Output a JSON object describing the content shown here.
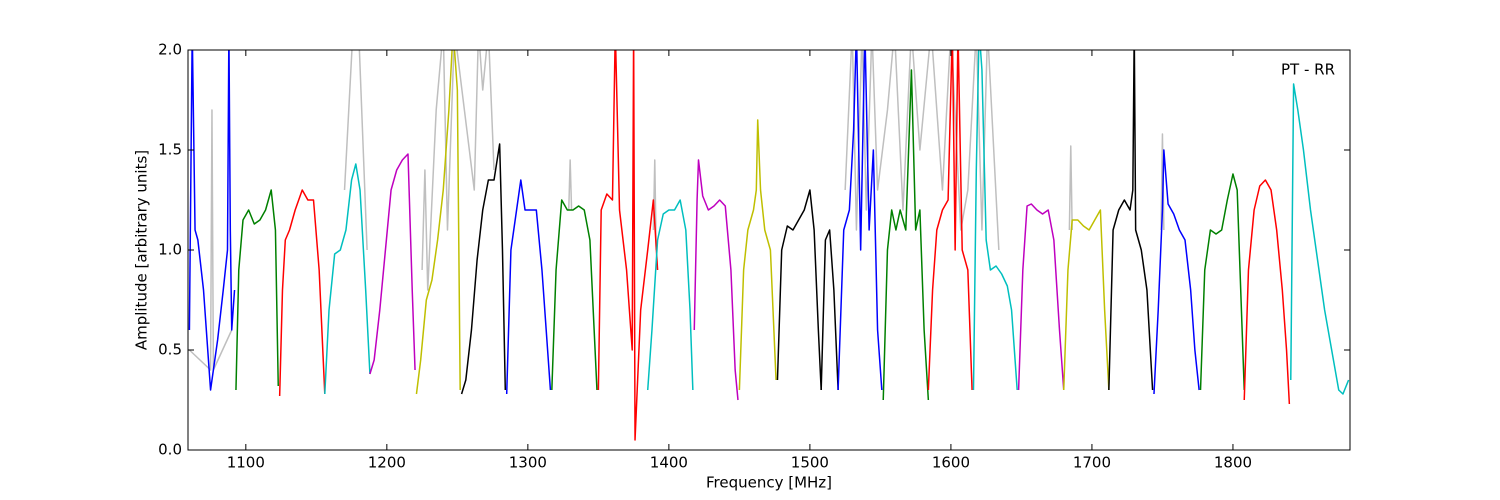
{
  "chart_data": {
    "type": "line",
    "xlabel": "Frequency [MHz]",
    "ylabel": "Amplitude [arbitrary units]",
    "annotation": "PT - RR",
    "xlim": [
      1059,
      1883
    ],
    "ylim": [
      0,
      2
    ],
    "xticks": [
      1100,
      1200,
      1300,
      1400,
      1500,
      1600,
      1700,
      1800
    ],
    "yticks": [
      {
        "value": 0,
        "label": "0.0"
      },
      0.5,
      {
        "value": 1,
        "label": "1.0"
      },
      1.5,
      {
        "value": 2,
        "label": "2.0"
      }
    ],
    "series": [
      {
        "color": "#bfbfbf",
        "x": [
          1060,
          1075,
          1076,
          1077,
          1090
        ],
        "values": [
          0.5,
          0.4,
          1.7,
          0.4,
          0.6
        ]
      },
      {
        "color": "#bfbfbf",
        "x": [
          1170,
          1176,
          1180,
          1186
        ],
        "values": [
          1.3,
          2.1,
          2.1,
          1.0
        ]
      },
      {
        "color": "#bfbfbf",
        "x": [
          1225,
          1227,
          1229,
          1235,
          1240,
          1243,
          1248,
          1262,
          1265,
          1268,
          1272,
          1276
        ],
        "values": [
          0.9,
          1.4,
          0.8,
          1.7,
          2.1,
          1.1,
          2.1,
          1.3,
          2.1,
          1.8,
          2.1,
          1.4
        ]
      },
      {
        "color": "#bfbfbf",
        "x": [
          1329,
          1330,
          1331
        ],
        "values": [
          1.2,
          1.45,
          1.2
        ]
      },
      {
        "color": "#bfbfbf",
        "x": [
          1389,
          1390,
          1391
        ],
        "values": [
          1.1,
          1.45,
          1.0
        ]
      },
      {
        "color": "#bfbfbf",
        "x": [
          1525,
          1530,
          1533,
          1537,
          1540,
          1544,
          1548,
          1555,
          1560,
          1566,
          1572,
          1578,
          1586,
          1594,
          1600,
          1607,
          1612,
          1618,
          1622,
          1626,
          1634
        ],
        "values": [
          1.3,
          2.1,
          1.1,
          2.1,
          1.2,
          2.1,
          1.3,
          1.7,
          2.1,
          1.2,
          2.1,
          1.5,
          2.1,
          1.3,
          2.1,
          1.1,
          1.3,
          2.1,
          1.1,
          2.1,
          1.0
        ]
      },
      {
        "color": "#bfbfbf",
        "x": [
          1684,
          1685,
          1686
        ],
        "values": [
          1.1,
          1.52,
          1.1
        ]
      },
      {
        "color": "#bfbfbf",
        "x": [
          1749,
          1750,
          1751
        ],
        "values": [
          1.1,
          1.58,
          1.1
        ]
      },
      {
        "color": "#0000ff",
        "x": [
          1060,
          1062,
          1064,
          1066,
          1070,
          1075,
          1080,
          1084,
          1087,
          1088,
          1089,
          1090,
          1092
        ],
        "values": [
          0.6,
          2.1,
          1.1,
          1.05,
          0.8,
          0.3,
          0.55,
          0.8,
          1.0,
          2.1,
          1.1,
          0.6,
          0.8
        ]
      },
      {
        "color": "#008000",
        "x": [
          1093,
          1095,
          1098,
          1102,
          1106,
          1110,
          1114,
          1118,
          1121,
          1123
        ],
        "values": [
          0.3,
          0.9,
          1.15,
          1.2,
          1.13,
          1.15,
          1.2,
          1.3,
          1.1,
          0.32
        ]
      },
      {
        "color": "#ff0000",
        "x": [
          1124,
          1126,
          1128,
          1131,
          1135,
          1140,
          1144,
          1148,
          1152,
          1156
        ],
        "values": [
          0.27,
          0.8,
          1.05,
          1.1,
          1.2,
          1.3,
          1.25,
          1.25,
          0.9,
          0.28
        ]
      },
      {
        "color": "#00bfbf",
        "x": [
          1156,
          1159,
          1163,
          1167,
          1171,
          1175,
          1178,
          1181,
          1185,
          1188
        ],
        "values": [
          0.28,
          0.7,
          0.98,
          1.0,
          1.1,
          1.35,
          1.43,
          1.3,
          0.8,
          0.38
        ]
      },
      {
        "color": "#bf00bf",
        "x": [
          1188,
          1191,
          1195,
          1199,
          1203,
          1207,
          1211,
          1215,
          1218,
          1220
        ],
        "values": [
          0.38,
          0.45,
          0.7,
          1.0,
          1.3,
          1.4,
          1.45,
          1.48,
          0.8,
          0.4
        ]
      },
      {
        "color": "#bfbf00",
        "x": [
          1221,
          1224,
          1228,
          1232,
          1236,
          1240,
          1244,
          1247,
          1250,
          1252
        ],
        "values": [
          0.28,
          0.45,
          0.75,
          0.85,
          1.05,
          1.3,
          1.7,
          2.1,
          1.8,
          0.3
        ]
      },
      {
        "color": "#000000",
        "x": [
          1253,
          1256,
          1260,
          1264,
          1268,
          1272,
          1276,
          1280,
          1282,
          1284
        ],
        "values": [
          0.28,
          0.35,
          0.6,
          0.95,
          1.2,
          1.35,
          1.35,
          1.53,
          1.0,
          0.3
        ]
      },
      {
        "color": "#0000ff",
        "x": [
          1285,
          1288,
          1292,
          1295,
          1298,
          1302,
          1306,
          1310,
          1313,
          1316
        ],
        "values": [
          0.28,
          1.0,
          1.2,
          1.35,
          1.2,
          1.2,
          1.2,
          0.9,
          0.6,
          0.3
        ]
      },
      {
        "color": "#008000",
        "x": [
          1317,
          1320,
          1324,
          1328,
          1332,
          1336,
          1340,
          1344,
          1347,
          1349
        ],
        "values": [
          0.3,
          0.9,
          1.25,
          1.2,
          1.2,
          1.22,
          1.2,
          1.05,
          0.6,
          0.3
        ]
      },
      {
        "color": "#ff0000",
        "x": [
          1350,
          1352,
          1356,
          1360,
          1362,
          1365,
          1370,
          1374,
          1375,
          1376,
          1380,
          1385,
          1389,
          1392
        ],
        "values": [
          0.3,
          1.2,
          1.28,
          1.25,
          2.1,
          1.2,
          0.9,
          0.5,
          2.1,
          0.05,
          0.7,
          1.0,
          1.25,
          0.9
        ]
      },
      {
        "color": "#00bfbf",
        "x": [
          1385,
          1388,
          1392,
          1396,
          1400,
          1404,
          1408,
          1412,
          1415,
          1417
        ],
        "values": [
          0.3,
          0.6,
          1.05,
          1.18,
          1.2,
          1.2,
          1.25,
          1.1,
          0.7,
          0.3
        ]
      },
      {
        "color": "#bf00bf",
        "x": [
          1418,
          1420,
          1421,
          1424,
          1428,
          1432,
          1436,
          1440,
          1444,
          1447,
          1449
        ],
        "values": [
          0.6,
          1.25,
          1.45,
          1.27,
          1.2,
          1.22,
          1.25,
          1.22,
          0.9,
          0.4,
          0.25
        ]
      },
      {
        "color": "#bfbf00",
        "x": [
          1450,
          1453,
          1456,
          1460,
          1462,
          1463,
          1465,
          1468,
          1472,
          1476
        ],
        "values": [
          0.3,
          0.9,
          1.1,
          1.2,
          1.3,
          1.65,
          1.3,
          1.1,
          1.0,
          0.35
        ]
      },
      {
        "color": "#000000",
        "x": [
          1477,
          1480,
          1484,
          1488,
          1492,
          1496,
          1500,
          1503,
          1506,
          1508
        ],
        "values": [
          0.35,
          1.0,
          1.12,
          1.1,
          1.15,
          1.2,
          1.3,
          1.1,
          0.6,
          0.3
        ]
      },
      {
        "color": "#000000",
        "x": [
          1508,
          1511,
          1514,
          1517,
          1520
        ],
        "values": [
          0.3,
          1.05,
          1.1,
          0.8,
          0.3
        ]
      },
      {
        "color": "#0000ff",
        "x": [
          1520,
          1524,
          1528,
          1531,
          1533,
          1536,
          1539,
          1542,
          1545,
          1548,
          1551
        ],
        "values": [
          0.3,
          1.1,
          1.2,
          1.6,
          2.1,
          1.0,
          2.1,
          1.1,
          1.5,
          0.6,
          0.3
        ]
      },
      {
        "color": "#008000",
        "x": [
          1552,
          1555,
          1558,
          1561,
          1564,
          1568,
          1572,
          1575,
          1578,
          1581,
          1584
        ],
        "values": [
          0.25,
          1.0,
          1.2,
          1.1,
          1.2,
          1.1,
          1.9,
          1.1,
          1.2,
          0.6,
          0.25
        ]
      },
      {
        "color": "#ff0000",
        "x": [
          1584,
          1587,
          1590,
          1594,
          1598,
          1601,
          1603,
          1605,
          1608,
          1612,
          1615
        ],
        "values": [
          0.3,
          0.8,
          1.1,
          1.2,
          1.25,
          2.1,
          1.0,
          2.1,
          1.0,
          0.9,
          0.3
        ]
      },
      {
        "color": "#00bfbf",
        "x": [
          1616,
          1618,
          1620,
          1622,
          1625,
          1628,
          1632,
          1636,
          1640,
          1643,
          1647
        ],
        "values": [
          0.3,
          1.4,
          2.1,
          1.9,
          1.05,
          0.9,
          0.92,
          0.88,
          0.82,
          0.7,
          0.3
        ]
      },
      {
        "color": "#bf00bf",
        "x": [
          1648,
          1651,
          1654,
          1657,
          1661,
          1665,
          1669,
          1673,
          1677,
          1680
        ],
        "values": [
          0.3,
          0.9,
          1.22,
          1.23,
          1.2,
          1.18,
          1.2,
          1.05,
          0.6,
          0.3
        ]
      },
      {
        "color": "#bfbf00",
        "x": [
          1680,
          1683,
          1686,
          1690,
          1694,
          1698,
          1702,
          1706,
          1709,
          1712
        ],
        "values": [
          0.3,
          0.9,
          1.15,
          1.15,
          1.12,
          1.1,
          1.15,
          1.2,
          0.7,
          0.3
        ]
      },
      {
        "color": "#000000",
        "x": [
          1712,
          1715,
          1719,
          1723,
          1727,
          1729,
          1730,
          1731,
          1735,
          1739,
          1743
        ],
        "values": [
          0.3,
          1.1,
          1.2,
          1.25,
          1.2,
          1.3,
          2.1,
          1.1,
          1.0,
          0.8,
          0.3
        ]
      },
      {
        "color": "#0000ff",
        "x": [
          1744,
          1747,
          1750,
          1751,
          1754,
          1758,
          1762,
          1766,
          1770,
          1773,
          1776
        ],
        "values": [
          0.28,
          0.7,
          1.2,
          1.5,
          1.23,
          1.18,
          1.1,
          1.05,
          0.8,
          0.5,
          0.3
        ]
      },
      {
        "color": "#008000",
        "x": [
          1777,
          1780,
          1784,
          1788,
          1792,
          1796,
          1800,
          1803,
          1806,
          1808
        ],
        "values": [
          0.3,
          0.9,
          1.1,
          1.08,
          1.1,
          1.25,
          1.38,
          1.3,
          0.7,
          0.3
        ]
      },
      {
        "color": "#ff0000",
        "x": [
          1808,
          1811,
          1815,
          1819,
          1823,
          1827,
          1831,
          1835,
          1838,
          1840
        ],
        "values": [
          0.25,
          0.9,
          1.2,
          1.32,
          1.35,
          1.3,
          1.1,
          0.8,
          0.5,
          0.23
        ]
      },
      {
        "color": "#00bfbf",
        "x": [
          1841,
          1843,
          1846,
          1850,
          1855,
          1860,
          1865,
          1870,
          1875,
          1878,
          1882
        ],
        "values": [
          0.35,
          1.83,
          1.7,
          1.5,
          1.2,
          0.95,
          0.7,
          0.5,
          0.3,
          0.28,
          0.35
        ]
      }
    ]
  }
}
